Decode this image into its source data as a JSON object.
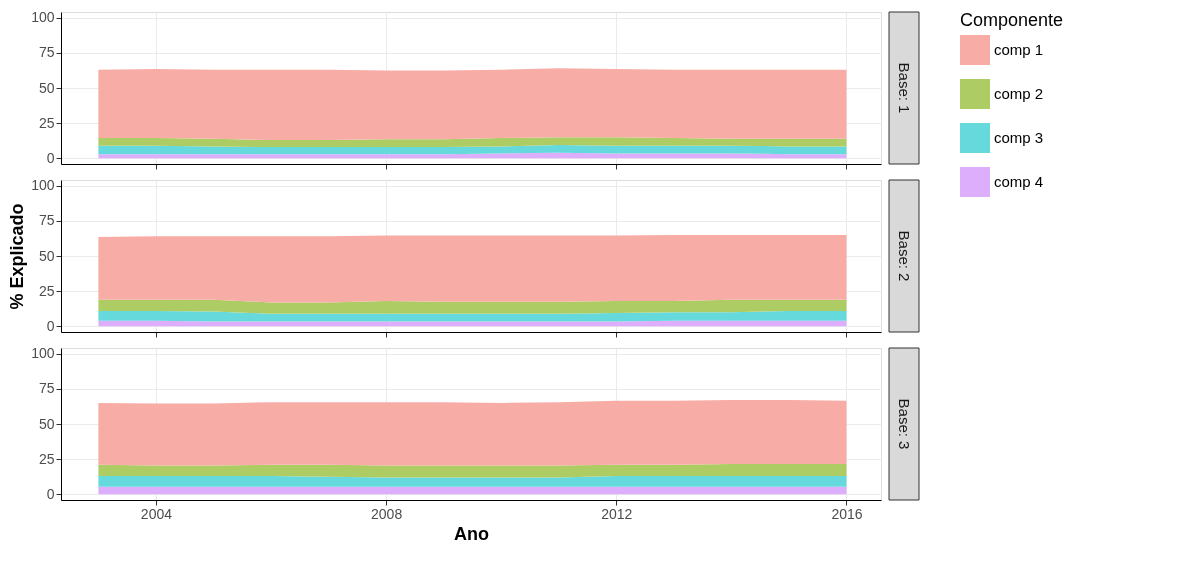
{
  "chart_data": [
    {
      "type": "area",
      "annotations": [
        "Base: 1"
      ],
      "stacked": true,
      "x": [
        2003,
        2004,
        2005,
        2006,
        2007,
        2008,
        2009,
        2010,
        2011,
        2012,
        2013,
        2014,
        2015,
        2016
      ],
      "xlim": [
        2002.35,
        2016.6
      ],
      "xticks": [
        2004,
        2008,
        2012,
        2016
      ],
      "ylim": [
        -4,
        104
      ],
      "yticks": [
        0,
        25,
        50,
        75,
        100
      ],
      "grid": true,
      "tick_labels": "y",
      "legend": "right",
      "legend_title": "Componente",
      "series": [
        {
          "name": "comp 4",
          "color": "#dcaefc",
          "values": [
            3,
            3,
            3,
            3,
            3,
            3,
            3,
            3.5,
            4,
            3.5,
            3.5,
            3.5,
            3,
            3
          ]
        },
        {
          "name": "comp 3",
          "color": "#66d9dc",
          "values": [
            6,
            6,
            5.5,
            5,
            5,
            5,
            5,
            5,
            5.5,
            5.5,
            5.5,
            5.5,
            5.5,
            5.5
          ]
        },
        {
          "name": "comp 2",
          "color": "#adcc64",
          "values": [
            5.5,
            5.5,
            5.5,
            5,
            5,
            5.5,
            5.5,
            6,
            5.5,
            6,
            5.5,
            5,
            5.5,
            5.5
          ]
        },
        {
          "name": "comp 1",
          "color": "#f8aca6",
          "values": [
            48.5,
            49,
            49,
            50,
            50,
            49,
            49,
            48.5,
            49,
            48.5,
            48.5,
            49,
            49,
            49
          ]
        }
      ]
    },
    {
      "type": "area",
      "annotations": [
        "Base: 2"
      ],
      "stacked": true,
      "ylabel": "% Explicado",
      "x": [
        2003,
        2004,
        2005,
        2006,
        2007,
        2008,
        2009,
        2010,
        2011,
        2012,
        2013,
        2014,
        2015,
        2016
      ],
      "xlim": [
        2002.35,
        2016.6
      ],
      "xticks": [
        2004,
        2008,
        2012,
        2016
      ],
      "ylim": [
        -4,
        104
      ],
      "yticks": [
        0,
        25,
        50,
        75,
        100
      ],
      "grid": true,
      "tick_labels": "y",
      "series": [
        {
          "name": "comp 4",
          "color": "#dcaefc",
          "values": [
            4,
            4,
            3.5,
            3.5,
            3.5,
            3.5,
            3.5,
            3.5,
            3.5,
            3.5,
            4,
            4,
            4,
            4
          ]
        },
        {
          "name": "comp 3",
          "color": "#66d9dc",
          "values": [
            7,
            7,
            7,
            5.5,
            5.5,
            5.5,
            5.5,
            5.5,
            5.5,
            6,
            6,
            6,
            7,
            7
          ]
        },
        {
          "name": "comp 2",
          "color": "#adcc64",
          "values": [
            8,
            8,
            8.5,
            8,
            8,
            9,
            8.5,
            8.5,
            8.5,
            8.5,
            8,
            9,
            8,
            8
          ]
        },
        {
          "name": "comp 1",
          "color": "#f8aca6",
          "values": [
            44.5,
            45,
            45,
            47,
            47,
            46.5,
            47,
            47,
            47,
            46.5,
            47,
            46,
            46,
            46
          ]
        }
      ]
    },
    {
      "type": "area",
      "annotations": [
        "Base: 3"
      ],
      "stacked": true,
      "xlabel": "Ano",
      "x": [
        2003,
        2004,
        2005,
        2006,
        2007,
        2008,
        2009,
        2010,
        2011,
        2012,
        2013,
        2014,
        2015,
        2016
      ],
      "xlim": [
        2002.35,
        2016.6
      ],
      "xticks": [
        2004,
        2008,
        2012,
        2016
      ],
      "ylim": [
        -4,
        104
      ],
      "yticks": [
        0,
        25,
        50,
        75,
        100
      ],
      "grid": true,
      "series": [
        {
          "name": "comp 4",
          "color": "#dcaefc",
          "values": [
            5.5,
            5.5,
            5.5,
            5.5,
            5.5,
            5.5,
            5.5,
            5.5,
            5.5,
            5.5,
            5.5,
            5.5,
            5.5,
            5.5
          ]
        },
        {
          "name": "comp 3",
          "color": "#66d9dc",
          "values": [
            7.5,
            7.5,
            7.5,
            7.5,
            7,
            6.5,
            6.5,
            6.5,
            6.5,
            7.5,
            7.5,
            7.5,
            7.5,
            7.5
          ]
        },
        {
          "name": "comp 2",
          "color": "#adcc64",
          "values": [
            8,
            7.5,
            7.5,
            8,
            8.5,
            8.5,
            8.5,
            8.5,
            8.5,
            8,
            8,
            8.5,
            8.5,
            8.5
          ]
        },
        {
          "name": "comp 1",
          "color": "#f8aca6",
          "values": [
            44,
            44,
            44,
            44.5,
            44.5,
            45,
            45,
            44.5,
            45,
            45.5,
            45.5,
            45.5,
            45.5,
            45
          ]
        }
      ]
    }
  ]
}
